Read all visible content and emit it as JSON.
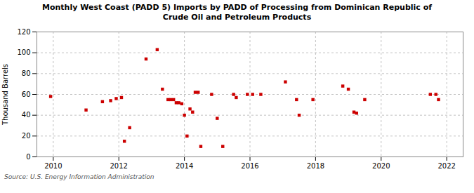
{
  "chart_data": {
    "type": "scatter",
    "title": "Monthly West Coast (PADD 5) Imports by PADD of Processing from Dominican Republic of\nCrude Oil and Petroleum Products",
    "ylabel": "Thousand Barrels",
    "source": "Source: U.S. Energy Information Administration",
    "color": "#cc0000",
    "marker": "square",
    "grid": true,
    "xlim": [
      2009.5,
      2022.5
    ],
    "xticks": [
      2010,
      2012,
      2014,
      2016,
      2018,
      2020,
      2022
    ],
    "ylim": [
      0,
      120
    ],
    "yticks": [
      0,
      20,
      40,
      60,
      80,
      100,
      120
    ],
    "x": [
      2009.92,
      2011.0,
      2011.5,
      2011.75,
      2011.92,
      2012.08,
      2012.17,
      2012.33,
      2012.83,
      2013.17,
      2013.33,
      2013.5,
      2013.58,
      2013.67,
      2013.75,
      2013.83,
      2013.92,
      2014.0,
      2014.08,
      2014.17,
      2014.25,
      2014.33,
      2014.42,
      2014.5,
      2014.83,
      2015.0,
      2015.17,
      2015.5,
      2015.58,
      2015.92,
      2016.08,
      2016.33,
      2017.08,
      2017.42,
      2017.5,
      2017.92,
      2018.83,
      2019.0,
      2019.17,
      2019.25,
      2019.5,
      2021.5,
      2021.67,
      2021.75
    ],
    "values": [
      58,
      45,
      53,
      54,
      56,
      57,
      15,
      28,
      94,
      103,
      65,
      55,
      55,
      55,
      52,
      52,
      51,
      40,
      20,
      46,
      43,
      62,
      62,
      10,
      60,
      37,
      10,
      60,
      57,
      60,
      60,
      60,
      72,
      55,
      40,
      55,
      68,
      65,
      43,
      42,
      55,
      60,
      60,
      55
    ]
  }
}
